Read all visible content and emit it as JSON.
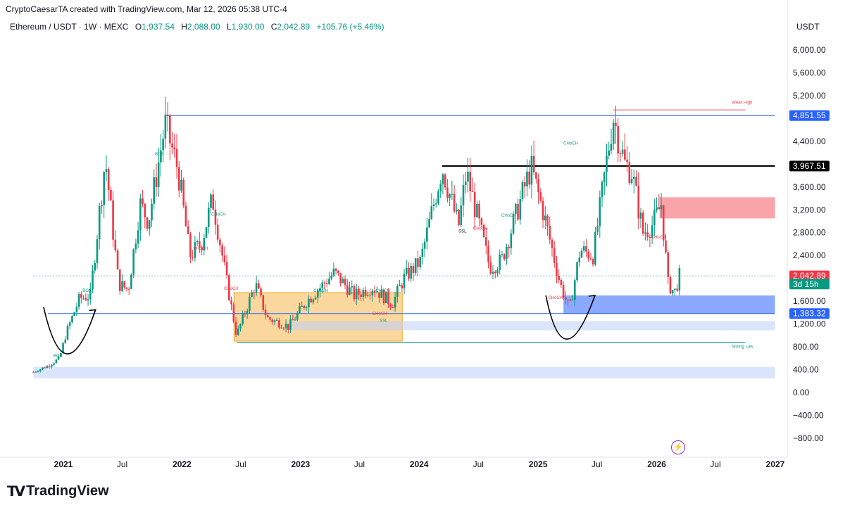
{
  "header": {
    "credit": "CryptoCaesarTA created with TradingView.com, Mar 12, 2026 05:38 UTC-4",
    "symbol": "Ethereum / USDT · 1W · MEXC",
    "o_label": "O",
    "o_value": "1,937.54",
    "h_label": "H",
    "h_value": "2,088.00",
    "l_label": "L",
    "l_value": "1,930.00",
    "c_label": "C",
    "c_value": "2,042.89",
    "change": "+105.76 (+5.46%)",
    "currency": "USDT"
  },
  "branding": {
    "logo_text": "TradingView",
    "icon": "lightning-icon"
  },
  "colors": {
    "up": "#089981",
    "down": "#f23645",
    "accent": "#2962ff",
    "text": "#131722"
  },
  "chart_data": {
    "type": "candlestick",
    "y_axis": {
      "range": [
        -1000,
        6400
      ],
      "ticks": [
        "6,000.00",
        "5,600.00",
        "5,200.00",
        "4,400.00",
        "3,600.00",
        "3,200.00",
        "2,800.00",
        "2,400.00",
        "1,600.00",
        "1,200.00",
        "800.00",
        "400.00",
        "0.00",
        "−400.00",
        "−800.00"
      ],
      "tick_values": [
        6000,
        5600,
        5200,
        4400,
        3600,
        3200,
        2800,
        2400,
        1600,
        1200,
        800,
        400,
        0,
        -400,
        -800
      ]
    },
    "x_axis": {
      "ticks": [
        "2021",
        "Jul",
        "2022",
        "Jul",
        "2023",
        "Jul",
        "2024",
        "Jul",
        "2025",
        "Jul",
        "2026",
        "Jul",
        "2027"
      ],
      "tick_dates": [
        "2021-01-01",
        "2021-07-01",
        "2022-01-01",
        "2022-07-01",
        "2023-01-01",
        "2023-07-01",
        "2024-01-01",
        "2024-07-01",
        "2025-01-01",
        "2025-07-01",
        "2026-01-01",
        "2026-07-01",
        "2027-01-01"
      ]
    },
    "price_labels": [
      {
        "text": "4,851.55",
        "value": 4851.55,
        "color": "#2962ff"
      },
      {
        "text": "3,967.51",
        "value": 3967.51,
        "color": "#000000"
      },
      {
        "text": "2,042.89",
        "value": 2042.89,
        "color": "#f23645"
      },
      {
        "text": "3d 15h",
        "value": 1900,
        "color": "#089981"
      },
      {
        "text": "1,383.32",
        "value": 1383.32,
        "color": "#2962ff"
      }
    ],
    "price_path": [
      [
        "2020-10-01",
        360
      ],
      [
        "2020-11-15",
        470
      ],
      [
        "2020-12-20",
        600
      ],
      [
        "2021-01-10",
        1050
      ],
      [
        "2021-02-20",
        1650
      ],
      [
        "2021-03-25",
        1700
      ],
      [
        "2021-05-10",
        4100
      ],
      [
        "2021-06-20",
        1900
      ],
      [
        "2021-07-20",
        1800
      ],
      [
        "2021-08-25",
        3300
      ],
      [
        "2021-09-20",
        3000
      ],
      [
        "2021-11-10",
        4700
      ],
      [
        "2021-12-20",
        3900
      ],
      [
        "2022-01-25",
        2400
      ],
      [
        "2022-03-01",
        2600
      ],
      [
        "2022-04-05",
        3400
      ],
      [
        "2022-05-20",
        1900
      ],
      [
        "2022-06-18",
        1000
      ],
      [
        "2022-08-15",
        1900
      ],
      [
        "2022-09-20",
        1300
      ],
      [
        "2022-11-08",
        1200
      ],
      [
        "2022-11-25",
        1150
      ],
      [
        "2023-01-20",
        1600
      ],
      [
        "2023-04-15",
        2100
      ],
      [
        "2023-06-15",
        1700
      ],
      [
        "2023-08-10",
        1850
      ],
      [
        "2023-10-10",
        1550
      ],
      [
        "2023-11-15",
        2000
      ],
      [
        "2024-01-05",
        2300
      ],
      [
        "2024-03-12",
        3950
      ],
      [
        "2024-05-01",
        2900
      ],
      [
        "2024-05-25",
        3850
      ],
      [
        "2024-08-05",
        2200
      ],
      [
        "2024-09-10",
        2300
      ],
      [
        "2024-12-10",
        3950
      ],
      [
        "2025-01-15",
        3200
      ],
      [
        "2025-02-05",
        2700
      ],
      [
        "2025-03-10",
        1900
      ],
      [
        "2025-04-08",
        1450
      ],
      [
        "2025-05-10",
        2500
      ],
      [
        "2025-06-20",
        2400
      ],
      [
        "2025-08-20",
        4850
      ],
      [
        "2025-09-25",
        4000
      ],
      [
        "2025-10-15",
        3900
      ],
      [
        "2025-11-20",
        2800
      ],
      [
        "2025-12-20",
        2950
      ],
      [
        "2026-01-15",
        3300
      ],
      [
        "2026-02-05",
        1900
      ],
      [
        "2026-02-25",
        1750
      ],
      [
        "2026-03-12",
        2042
      ]
    ],
    "zones": [
      {
        "name": "accumulation",
        "from": "2022-06-10",
        "to": "2023-11-10",
        "low": 900,
        "high": 1750,
        "color": "#f5a623"
      },
      {
        "name": "supply",
        "from": "2026-01-10",
        "to": "2026-12-31",
        "low": 3050,
        "high": 3420,
        "color": "#f23645"
      },
      {
        "name": "demand",
        "from": "2025-03-20",
        "to": "2026-12-31",
        "low": 1383,
        "high": 1700,
        "color": "#2962ff"
      },
      {
        "name": "demand-light",
        "from": "2022-11-25",
        "to": "2026-12-31",
        "low": 1090,
        "high": 1250,
        "color": "#bcd0fa"
      },
      {
        "name": "base-light",
        "from": "2020-10-01",
        "to": "2026-12-31",
        "low": 250,
        "high": 450,
        "color": "#bcd0fa"
      }
    ],
    "levels": [
      {
        "value": 4851.55,
        "from": "2021-11-10",
        "to": "2026-12-31",
        "color": "#2962ff",
        "width": 1
      },
      {
        "value": 3967.51,
        "from": "2024-03-12",
        "to": "2026-12-31",
        "color": "#000000",
        "width": 2
      },
      {
        "value": 1383.32,
        "from": "2020-11-15",
        "to": "2026-12-31",
        "color": "#2962ff",
        "width": 1
      },
      {
        "value": 2042.89,
        "from": "2020-10-01",
        "to": "2026-12-31",
        "color": "#089981",
        "width": 1,
        "dotted": true
      },
      {
        "value": 880,
        "from": "2022-06-18",
        "to": "2026-10-01",
        "color": "#089981",
        "width": 1
      },
      {
        "value": 4950,
        "from": "2025-08-20",
        "to": "2026-10-01",
        "color": "#f23645",
        "width": 1
      }
    ],
    "annotations": [
      {
        "text": "Weak High",
        "date": "2026-08-20",
        "value": 5060,
        "color": "#f23645"
      },
      {
        "text": "Strong Low",
        "date": "2026-08-20",
        "value": 780,
        "color": "#089981"
      },
      {
        "text": "BOS",
        "date": "2020-12-01",
        "value": 620,
        "color": "#089981"
      },
      {
        "text": "BOS",
        "date": "2021-03-01",
        "value": 1760,
        "color": "#089981"
      },
      {
        "text": "BOS",
        "date": "2021-10-10",
        "value": 4150,
        "color": "#089981"
      },
      {
        "text": "CHoCH",
        "date": "2022-02-05",
        "value": 2500,
        "color": "#f23645"
      },
      {
        "text": "CHoCH",
        "date": "2022-04-01",
        "value": 3100,
        "color": "#089981"
      },
      {
        "text": "CHoCH",
        "date": "2022-05-10",
        "value": 1800,
        "color": "#f23645"
      },
      {
        "text": "CHoCH",
        "date": "2023-02-10",
        "value": 1760,
        "color": "#089981"
      },
      {
        "text": "CHoCH",
        "date": "2023-08-20",
        "value": 1760,
        "color": "#089981"
      },
      {
        "text": "CHoCH",
        "date": "2023-08-10",
        "value": 1360,
        "color": "#f23645"
      },
      {
        "text": "SSL",
        "date": "2023-09-01",
        "value": 1240,
        "color": "#089981"
      },
      {
        "text": "CHoCH",
        "date": "2024-06-15",
        "value": 2850,
        "color": "#f23645"
      },
      {
        "text": "SSL",
        "date": "2024-05-01",
        "value": 2800,
        "color": "#131722"
      },
      {
        "text": "CHoCH",
        "date": "2024-09-10",
        "value": 3080,
        "color": "#089981"
      },
      {
        "text": "CHoCH",
        "date": "2025-02-01",
        "value": 1640,
        "color": "#f23645"
      },
      {
        "text": "CHoCH",
        "date": "2025-03-20",
        "value": 4340,
        "color": "#089981"
      },
      {
        "text": "CHoCH",
        "date": "2025-12-15",
        "value": 2700,
        "color": "#f23645"
      }
    ],
    "arrows": [
      {
        "from": [
          "2020-11-01",
          1500
        ],
        "via": [
          "2021-01-05",
          600
        ],
        "to": [
          "2021-04-10",
          1450
        ]
      },
      {
        "from": [
          "2025-01-25",
          1700
        ],
        "via": [
          "2025-03-20",
          850
        ],
        "to": [
          "2025-06-25",
          1700
        ]
      }
    ]
  }
}
